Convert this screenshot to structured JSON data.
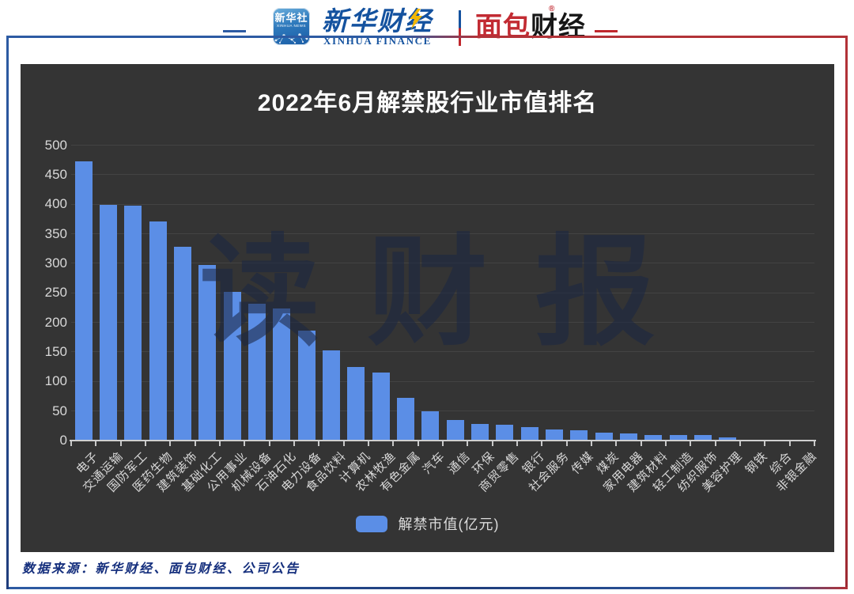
{
  "header": {
    "xinhua_icon": {
      "title": "新华社",
      "subtitle": "XINHUA NEWS"
    },
    "xinhua_finance": {
      "logo": "新华财经",
      "subtitle": "XINHUA FINANCE"
    },
    "bread_finance": {
      "part1": "面包",
      "part2": "财经",
      "reg": "®"
    }
  },
  "chart_data": {
    "type": "bar",
    "title": "2022年6月解禁股行业市值排名",
    "categories": [
      "电子",
      "交通运输",
      "国防军工",
      "医药生物",
      "建筑装饰",
      "基础化工",
      "公用事业",
      "机械设备",
      "石油石化",
      "电力设备",
      "食品饮料",
      "计算机",
      "农林牧渔",
      "有色金属",
      "汽车",
      "通信",
      "环保",
      "商贸零售",
      "银行",
      "社会服务",
      "传媒",
      "煤炭",
      "家用电器",
      "建筑材料",
      "轻工制造",
      "纺织服饰",
      "美容护理",
      "钢铁",
      "综合",
      "非银金融"
    ],
    "values": [
      472,
      399,
      397,
      371,
      328,
      297,
      252,
      232,
      224,
      186,
      152,
      125,
      115,
      72,
      50,
      35,
      28,
      27,
      23,
      19,
      18,
      14,
      12,
      10,
      9.5,
      9,
      5,
      2,
      1.5,
      1
    ],
    "series": [
      {
        "name": "解禁市值(亿元)",
        "color": "#5b8ee6"
      }
    ],
    "xlabel": "",
    "ylabel": "",
    "ylim": [
      0,
      500
    ],
    "yticks": [
      0,
      50,
      100,
      150,
      200,
      250,
      300,
      350,
      400,
      450,
      500
    ],
    "grid": true,
    "legend_label": "解禁市值(亿元)",
    "legend_position": "bottom",
    "bar_color": "#5b8ee6",
    "panel_background": "#343434",
    "watermark": "读财报"
  },
  "footer": {
    "source": "数据来源：新华财经、面包财经、公司公告"
  }
}
